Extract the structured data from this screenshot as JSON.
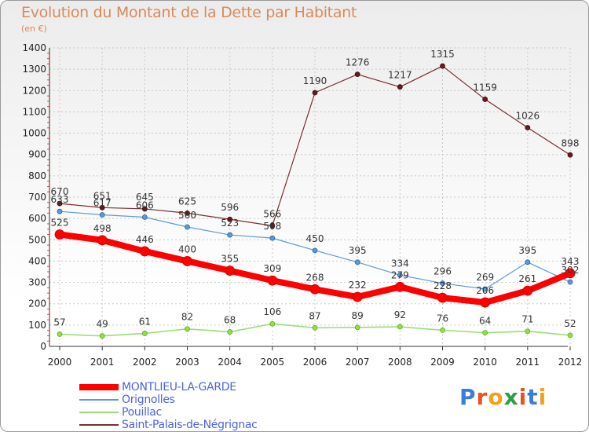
{
  "title": "Evolution du Montant de la Dette par Habitant",
  "subtitle": "(en €)",
  "logo_text": "Proxiti",
  "chart_data": {
    "type": "line",
    "title": "Evolution du Montant de la Dette par Habitant",
    "subtitle": "(en €)",
    "xlabel": "",
    "ylabel": "",
    "x": [
      2000,
      2001,
      2002,
      2003,
      2004,
      2005,
      2006,
      2007,
      2008,
      2009,
      2010,
      2011,
      2012
    ],
    "ylim": [
      0,
      1400
    ],
    "yticks": [
      0,
      100,
      200,
      300,
      400,
      500,
      600,
      700,
      800,
      900,
      1000,
      1100,
      1200,
      1300,
      1400
    ],
    "grid": true,
    "legend_position": "bottom-left",
    "series": [
      {
        "name": "Saint-Palais-de-Négrignac",
        "color": "#7a2e2e",
        "values": [
          670,
          651,
          645,
          625,
          596,
          566,
          1190,
          1276,
          1217,
          1315,
          1159,
          1026,
          898
        ]
      },
      {
        "name": "Orignolles",
        "color": "#5b9bd5",
        "values": [
          633,
          617,
          606,
          560,
          523,
          508,
          450,
          395,
          334,
          296,
          269,
          395,
          302
        ]
      },
      {
        "name": "Pouillac",
        "color": "#99dd77",
        "values": [
          57,
          49,
          61,
          82,
          68,
          106,
          87,
          89,
          92,
          76,
          64,
          71,
          52
        ]
      },
      {
        "name": "MONTLIEU-LA-GARDE",
        "color": "#ff0000",
        "values": [
          525,
          498,
          446,
          400,
          355,
          309,
          268,
          232,
          279,
          228,
          206,
          261,
          343
        ]
      }
    ],
    "legend_order": [
      "MONTLIEU-LA-GARDE",
      "Orignolles",
      "Pouillac",
      "Saint-Palais-de-Négrignac"
    ],
    "data_labels": {
      "Saint-Palais-de-Négrignac": [
        "670",
        "651",
        "645",
        "625",
        "596",
        "566",
        "1190",
        "1276",
        "1217",
        "1315",
        "1159",
        "1026",
        "898"
      ],
      "Orignolles": [
        "633",
        "617",
        "606",
        "560",
        "523",
        "508",
        "450",
        "395",
        "334",
        "296",
        "269",
        "395",
        "302"
      ],
      "Pouillac": [
        "57",
        "49",
        "61",
        "82",
        "68",
        "106",
        "87",
        "89",
        "92",
        "76",
        "64",
        "71",
        "52"
      ],
      "MONTLIEU-LA-GARDE": [
        "525",
        "498",
        "446",
        "400",
        "355",
        "309",
        "268",
        "232",
        "279",
        "228",
        "206",
        "261",
        "343"
      ]
    }
  }
}
